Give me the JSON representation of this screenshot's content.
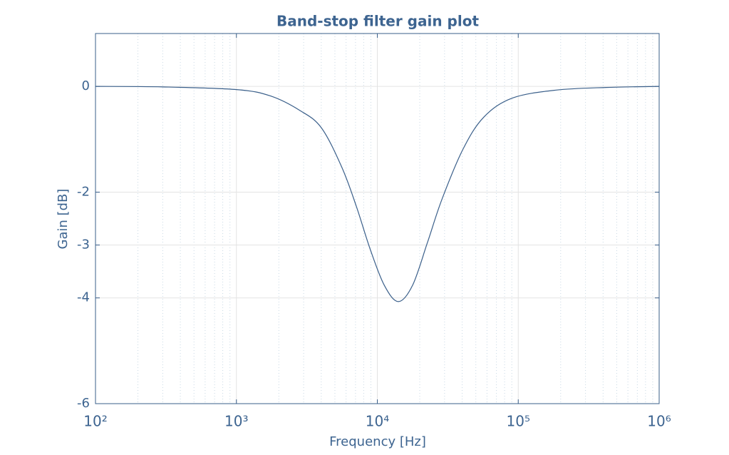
{
  "chart_data": {
    "type": "line",
    "title": "Band-stop filter gain plot",
    "x_label": "Frequency [Hz]",
    "y_label": "Gain [dB]",
    "x": [
      100,
      300,
      1000,
      1740,
      2800,
      4000,
      5600,
      7100,
      8900,
      11200,
      14100,
      17800,
      22700,
      28700,
      40500,
      57000,
      91000,
      186000,
      420000,
      1000000
    ],
    "series": [
      {
        "name": "Gain",
        "color": "#3a5f8a",
        "values": [
          0,
          -0.01,
          -0.06,
          -0.18,
          -0.45,
          -0.78,
          -1.53,
          -2.27,
          -3.08,
          -3.76,
          -4.07,
          -3.76,
          -2.95,
          -2.14,
          -1.19,
          -0.58,
          -0.22,
          -0.07,
          -0.02,
          0
        ]
      }
    ],
    "xlim": [
      100,
      1000000
    ],
    "x_log": true,
    "xticks": [
      {
        "value": 100,
        "label": "10²"
      },
      {
        "value": 1000,
        "label": "10³"
      },
      {
        "value": 10000,
        "label": "10⁴"
      },
      {
        "value": 100000,
        "label": "10⁵"
      },
      {
        "value": 1000000,
        "label": "10⁶"
      }
    ],
    "ylim": [
      -6,
      1
    ],
    "yticks": [
      -6,
      -4,
      -3,
      -2,
      0
    ],
    "grid": true,
    "minor_grid": true
  }
}
